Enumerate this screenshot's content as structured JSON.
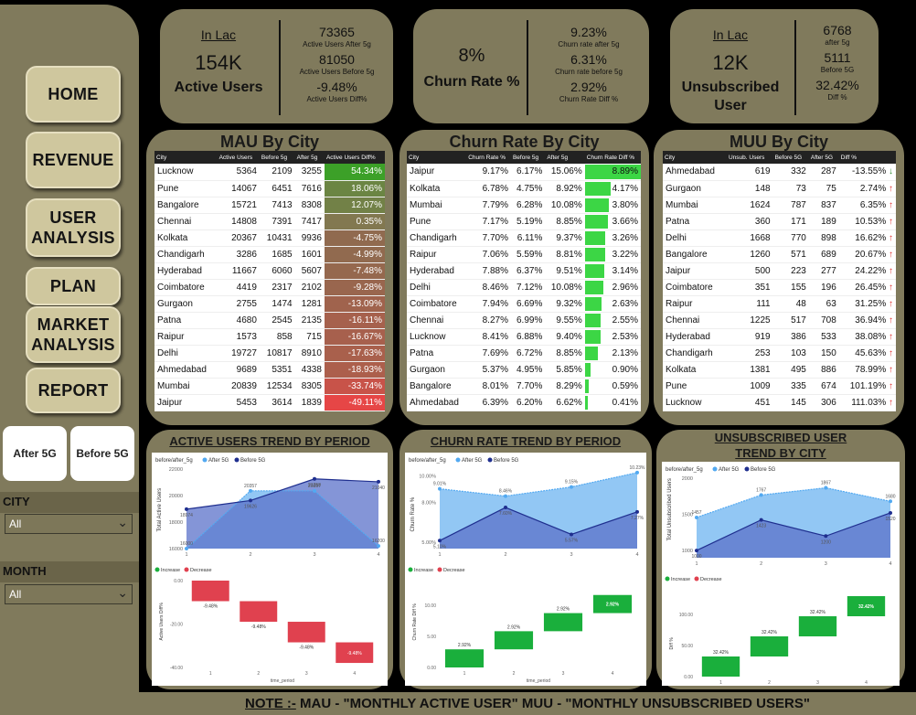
{
  "nav": [
    "HOME",
    "REVENUE",
    "USER ANALYSIS",
    "PLAN",
    "MARKET ANALYSIS",
    "REPORT"
  ],
  "toggles": [
    "After 5G",
    "Before 5G"
  ],
  "slicers": {
    "city_label": "CITY",
    "city_value": "All",
    "month_label": "MONTH",
    "month_value": "All"
  },
  "kpi1": {
    "unit": "In Lac",
    "value": "154K",
    "label": "Active Users",
    "v1": "73365",
    "l1": "Active Users After 5g",
    "v2": "81050",
    "l2": "Active Users Before 5g",
    "v3": "-9.48%",
    "l3": "Active Users Diff%"
  },
  "kpi2": {
    "value": "8%",
    "label": "Churn Rate %",
    "v1": "9.23%",
    "l1": "Churn rate after 5g",
    "v2": "6.31%",
    "l2": "Churn rate before 5g",
    "v3": "2.92%",
    "l3": "Churn Rate Diff %"
  },
  "kpi3": {
    "unit": "In Lac",
    "value": "12K",
    "label": "Unsubscribed User",
    "v1": "6768",
    "l1": "after 5g",
    "v2": "5111",
    "l2": "Before 5G",
    "v3": "32.42%",
    "l3": "Diff %"
  },
  "mau": {
    "title": "MAU By City",
    "headers": [
      "City",
      "Active Users",
      "Before 5g",
      "After 5g",
      "Active Users Diff%"
    ],
    "rows": [
      [
        "Lucknow",
        "5364",
        "2109",
        "3255",
        "54.34%"
      ],
      [
        "Pune",
        "14067",
        "6451",
        "7616",
        "18.06%"
      ],
      [
        "Bangalore",
        "15721",
        "7413",
        "8308",
        "12.07%"
      ],
      [
        "Chennai",
        "14808",
        "7391",
        "7417",
        "0.35%"
      ],
      [
        "Kolkata",
        "20367",
        "10431",
        "9936",
        "-4.75%"
      ],
      [
        "Chandigarh",
        "3286",
        "1685",
        "1601",
        "-4.99%"
      ],
      [
        "Hyderabad",
        "11667",
        "6060",
        "5607",
        "-7.48%"
      ],
      [
        "Coimbatore",
        "4419",
        "2317",
        "2102",
        "-9.28%"
      ],
      [
        "Gurgaon",
        "2755",
        "1474",
        "1281",
        "-13.09%"
      ],
      [
        "Patna",
        "4680",
        "2545",
        "2135",
        "-16.11%"
      ],
      [
        "Raipur",
        "1573",
        "858",
        "715",
        "-16.67%"
      ],
      [
        "Delhi",
        "19727",
        "10817",
        "8910",
        "-17.63%"
      ],
      [
        "Ahmedabad",
        "9689",
        "5351",
        "4338",
        "-18.93%"
      ],
      [
        "Mumbai",
        "20839",
        "12534",
        "8305",
        "-33.74%"
      ],
      [
        "Jaipur",
        "5453",
        "3614",
        "1839",
        "-49.11%"
      ]
    ]
  },
  "churn": {
    "title": "Churn Rate By City",
    "headers": [
      "City",
      "Churn Rate %",
      "Before 5g",
      "After 5g",
      "Churn Rate Diff %"
    ],
    "rows": [
      [
        "Jaipur",
        "9.17%",
        "6.17%",
        "15.06%",
        "8.89%"
      ],
      [
        "Kolkata",
        "6.78%",
        "4.75%",
        "8.92%",
        "4.17%"
      ],
      [
        "Mumbai",
        "7.79%",
        "6.28%",
        "10.08%",
        "3.80%"
      ],
      [
        "Pune",
        "7.17%",
        "5.19%",
        "8.85%",
        "3.66%"
      ],
      [
        "Chandigarh",
        "7.70%",
        "6.11%",
        "9.37%",
        "3.26%"
      ],
      [
        "Raipur",
        "7.06%",
        "5.59%",
        "8.81%",
        "3.22%"
      ],
      [
        "Hyderabad",
        "7.88%",
        "6.37%",
        "9.51%",
        "3.14%"
      ],
      [
        "Delhi",
        "8.46%",
        "7.12%",
        "10.08%",
        "2.96%"
      ],
      [
        "Coimbatore",
        "7.94%",
        "6.69%",
        "9.32%",
        "2.63%"
      ],
      [
        "Chennai",
        "8.27%",
        "6.99%",
        "9.55%",
        "2.55%"
      ],
      [
        "Lucknow",
        "8.41%",
        "6.88%",
        "9.40%",
        "2.53%"
      ],
      [
        "Patna",
        "7.69%",
        "6.72%",
        "8.85%",
        "2.13%"
      ],
      [
        "Gurgaon",
        "5.37%",
        "4.95%",
        "5.85%",
        "0.90%"
      ],
      [
        "Bangalore",
        "8.01%",
        "7.70%",
        "8.29%",
        "0.59%"
      ],
      [
        "Ahmedabad",
        "6.39%",
        "6.20%",
        "6.62%",
        "0.41%"
      ]
    ]
  },
  "muu": {
    "title": "MUU By City",
    "headers": [
      "City",
      "Unsub. Users",
      "Before 5G",
      "After 5G",
      "Diff %"
    ],
    "rows": [
      [
        "Ahmedabad",
        "619",
        "332",
        "287",
        "-13.55%"
      ],
      [
        "Gurgaon",
        "148",
        "73",
        "75",
        "2.74%"
      ],
      [
        "Mumbai",
        "1624",
        "787",
        "837",
        "6.35%"
      ],
      [
        "Patna",
        "360",
        "171",
        "189",
        "10.53%"
      ],
      [
        "Delhi",
        "1668",
        "770",
        "898",
        "16.62%"
      ],
      [
        "Bangalore",
        "1260",
        "571",
        "689",
        "20.67%"
      ],
      [
        "Jaipur",
        "500",
        "223",
        "277",
        "24.22%"
      ],
      [
        "Coimbatore",
        "351",
        "155",
        "196",
        "26.45%"
      ],
      [
        "Raipur",
        "111",
        "48",
        "63",
        "31.25%"
      ],
      [
        "Chennai",
        "1225",
        "517",
        "708",
        "36.94%"
      ],
      [
        "Hyderabad",
        "919",
        "386",
        "533",
        "38.08%"
      ],
      [
        "Chandigarh",
        "253",
        "103",
        "150",
        "45.63%"
      ],
      [
        "Kolkata",
        "1381",
        "495",
        "886",
        "78.99%"
      ],
      [
        "Pune",
        "1009",
        "335",
        "674",
        "101.19%"
      ],
      [
        "Lucknow",
        "451",
        "145",
        "306",
        "111.03%"
      ]
    ]
  },
  "trends": {
    "t1": "ACTIVE USERS TREND BY PERIOD",
    "t2": "CHURN RATE TREND BY PERIOD",
    "t3": "UNSUBSCRIBED USER TREND BY CITY",
    "legend_title": "before/after_5g",
    "after": "After 5G",
    "before": "Before 5G",
    "after5g_short": "After 5g",
    "before5g_short": "Before 5g",
    "increase": "Increase",
    "decrease": "Decrease",
    "xlabel": "time_period",
    "yl1": "Total Active Users",
    "yl2": "Churn Rate %",
    "yl3": "Total Unsubscribed Users",
    "wl1": "Active Users Diff%",
    "wl2": "Churn Rate Diff %",
    "wl3": "Diff %"
  },
  "chart_data": [
    {
      "type": "area",
      "title": "ACTIVE USERS TREND BY PERIOD",
      "x": [
        1,
        2,
        3,
        4
      ],
      "ylabel": "Total Active Users",
      "xlabel": "time_period",
      "ylim": [
        16000,
        22000
      ],
      "series": [
        {
          "name": "After 5G",
          "values": [
            16000,
            20357,
            20357,
            16200
          ]
        },
        {
          "name": "Before 5G",
          "values": [
            18974,
            19626,
            21258,
            21040
          ]
        }
      ]
    },
    {
      "type": "area",
      "title": "CHURN RATE TREND BY PERIOD",
      "x": [
        1,
        2,
        3,
        4
      ],
      "ylabel": "Churn Rate %",
      "xlabel": "time_period",
      "series": [
        {
          "name": "After 5G",
          "values": [
            9.01,
            8.46,
            9.15,
            10.23
          ]
        },
        {
          "name": "Before 5G",
          "values": [
            5.1,
            7.6,
            5.57,
            7.27
          ]
        }
      ]
    },
    {
      "type": "area",
      "title": "UNSUBSCRIBED USER TREND BY CITY",
      "x": [
        1,
        2,
        3,
        4
      ],
      "ylabel": "Total Unsubscribed Users",
      "xlabel": "time_period",
      "series": [
        {
          "name": "After 5G",
          "values": [
            1457,
            1767,
            1867,
            1680
          ]
        },
        {
          "name": "Before 5G",
          "values": [
            1000,
            1423,
            1200,
            1520
          ]
        }
      ]
    },
    {
      "type": "bar",
      "title": "Active Users Diff%",
      "x": [
        1,
        2,
        3,
        4
      ],
      "values": [
        -9.48,
        -9.48,
        -9.48,
        -9.48
      ]
    },
    {
      "type": "bar",
      "title": "Churn Rate Diff %",
      "x": [
        1,
        2,
        3,
        4
      ],
      "values": [
        2.92,
        2.92,
        2.92,
        2.92
      ]
    },
    {
      "type": "bar",
      "title": "Diff %",
      "x": [
        1,
        2,
        3,
        4
      ],
      "values": [
        32.42,
        32.42,
        32.42,
        32.42
      ]
    }
  ],
  "footer": {
    "note": "NOTE :-",
    "text": " MAU - \"MONTHLY ACTIVE USER\"  MUU - \"MONTHLY  UNSUBSCRIBED USERS\""
  }
}
